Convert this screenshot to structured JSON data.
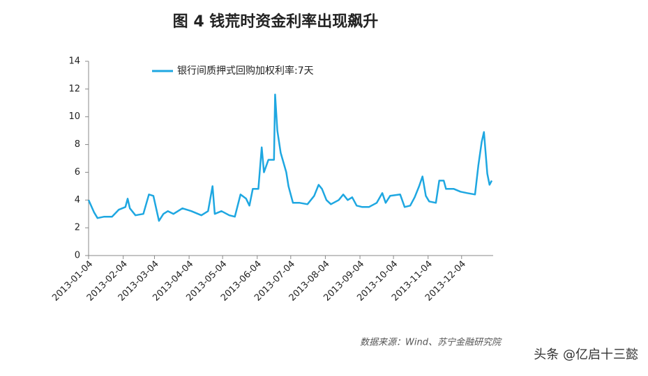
{
  "chart_data": {
    "type": "line",
    "title": "图 4 钱荒时资金利率出现飙升",
    "source": "数据来源：Wind、苏宁金融研究院",
    "watermark": "头条 @亿启十三懿",
    "x": [
      "2013-01-04",
      "2013-01-09",
      "2013-01-12",
      "2013-01-18",
      "2013-01-25",
      "2013-01-31",
      "2013-02-06",
      "2013-02-08",
      "2013-02-10",
      "2013-02-15",
      "2013-02-22",
      "2013-02-27",
      "2013-03-03",
      "2013-03-08",
      "2013-03-12",
      "2013-03-16",
      "2013-03-21",
      "2013-03-29",
      "2013-04-06",
      "2013-04-15",
      "2013-04-21",
      "2013-04-25",
      "2013-04-27",
      "2013-05-03",
      "2013-05-10",
      "2013-05-15",
      "2013-05-20",
      "2013-05-25",
      "2013-05-28",
      "2013-05-31",
      "2013-06-05",
      "2013-06-08",
      "2013-06-10",
      "2013-06-14",
      "2013-06-19",
      "2013-06-20",
      "2013-06-22",
      "2013-06-25",
      "2013-06-30",
      "2013-07-02",
      "2013-07-06",
      "2013-07-12",
      "2013-07-19",
      "2013-07-25",
      "2013-07-29",
      "2013-08-01",
      "2013-08-05",
      "2013-08-09",
      "2013-08-16",
      "2013-08-20",
      "2013-08-24",
      "2013-08-28",
      "2013-09-01",
      "2013-09-06",
      "2013-09-12",
      "2013-09-19",
      "2013-09-24",
      "2013-09-27",
      "2013-10-01",
      "2013-10-10",
      "2013-10-14",
      "2013-10-19",
      "2013-10-23",
      "2013-10-27",
      "2013-10-30",
      "2013-11-02",
      "2013-11-05",
      "2013-11-11",
      "2013-11-14",
      "2013-11-18",
      "2013-11-20",
      "2013-11-27",
      "2013-12-03",
      "2013-12-09",
      "2013-12-16",
      "2013-12-19",
      "2013-12-22",
      "2013-12-24",
      "2013-12-27",
      "2013-12-29",
      "2013-12-31"
    ],
    "series": [
      {
        "name": "银行间质押式回购加权利率:7天",
        "color": "#1ea7e1",
        "values": [
          4.0,
          3.1,
          2.7,
          2.8,
          2.8,
          3.3,
          3.5,
          4.1,
          3.4,
          2.9,
          3.0,
          4.4,
          4.3,
          2.5,
          3.0,
          3.2,
          3.0,
          3.4,
          3.2,
          2.9,
          3.2,
          5.0,
          3.0,
          3.2,
          2.9,
          2.8,
          4.4,
          4.1,
          3.6,
          4.8,
          4.8,
          7.8,
          6.0,
          6.9,
          6.9,
          11.6,
          9.0,
          7.4,
          6.0,
          5.0,
          3.8,
          3.8,
          3.7,
          4.3,
          5.1,
          4.8,
          4.0,
          3.7,
          4.0,
          4.4,
          4.0,
          4.2,
          3.6,
          3.5,
          3.5,
          3.8,
          4.5,
          3.8,
          4.3,
          4.4,
          3.5,
          3.6,
          4.2,
          5.0,
          5.7,
          4.3,
          3.9,
          3.8,
          5.4,
          5.4,
          4.8,
          4.8,
          4.6,
          4.5,
          4.4,
          6.5,
          8.2,
          8.9,
          5.9,
          5.1,
          5.4
        ]
      }
    ],
    "xlim": [
      "2013-01-04",
      "2013-12-31"
    ],
    "xticks": [
      "2013-01-04",
      "2013-02-04",
      "2013-03-04",
      "2013-04-04",
      "2013-05-04",
      "2013-06-04",
      "2013-07-04",
      "2013-08-04",
      "2013-09-04",
      "2013-10-04",
      "2013-11-04",
      "2013-12-04"
    ],
    "ylim": [
      0,
      14
    ],
    "yticks": [
      0,
      2,
      4,
      6,
      8,
      10,
      12,
      14
    ],
    "grid": false,
    "legend": "top"
  }
}
